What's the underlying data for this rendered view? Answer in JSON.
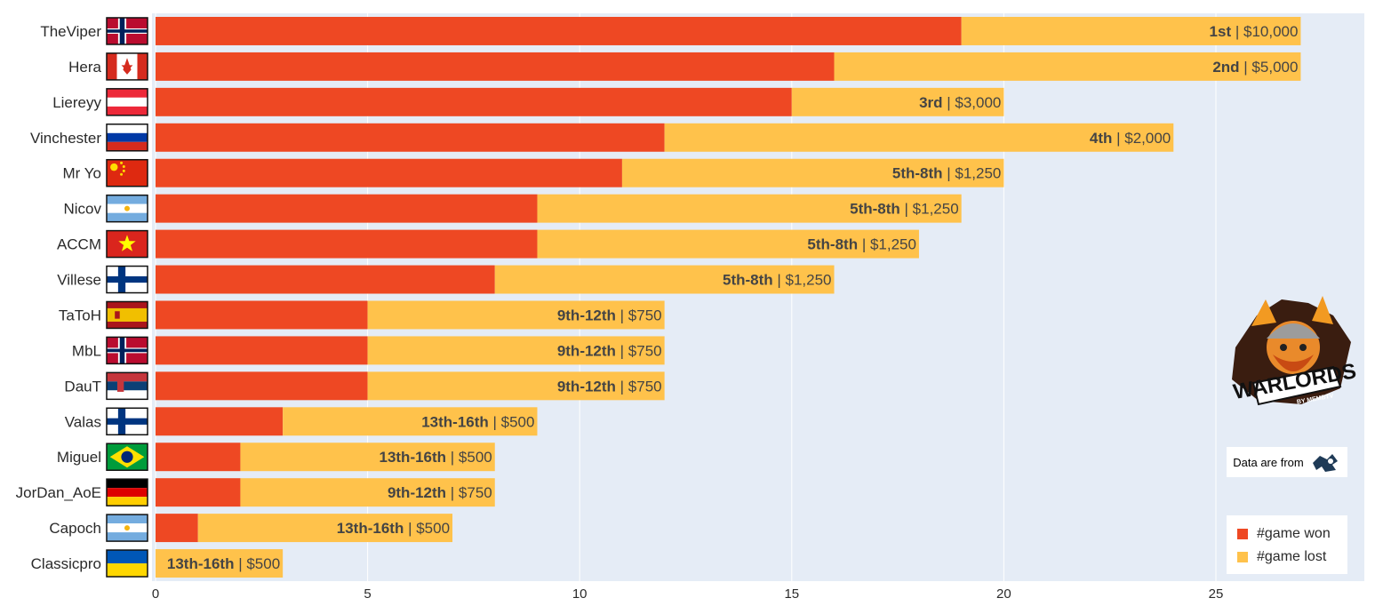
{
  "chart_data": {
    "type": "bar",
    "orientation": "horizontal",
    "stacked": true,
    "categories": [
      "TheViper",
      "Hera",
      "Liereyy",
      "Vinchester",
      "Mr Yo",
      "Nicov",
      "ACCM",
      "Villese",
      "TaToH",
      "MbL",
      "DauT",
      "Valas",
      "Miguel",
      "JorDan_AoE",
      "Capoch",
      "Classicpro"
    ],
    "series": [
      {
        "name": "#game won",
        "color": "#ee4823",
        "values": [
          19,
          16,
          15,
          12,
          11,
          9,
          9,
          8,
          5,
          5,
          5,
          3,
          2,
          2,
          1,
          0
        ]
      },
      {
        "name": "#game lost",
        "color": "#ffc24b",
        "values": [
          8,
          11,
          5,
          12,
          9,
          10,
          9,
          8,
          7,
          7,
          7,
          6,
          6,
          6,
          6,
          3
        ]
      }
    ],
    "bar_labels": [
      {
        "place": "1st",
        "prize": "| $10,000"
      },
      {
        "place": "2nd",
        "prize": "| $5,000"
      },
      {
        "place": "3rd",
        "prize": "| $3,000"
      },
      {
        "place": "4th",
        "prize": "| $2,000"
      },
      {
        "place": "5th-8th",
        "prize": "| $1,250"
      },
      {
        "place": "5th-8th",
        "prize": "| $1,250"
      },
      {
        "place": "5th-8th",
        "prize": "| $1,250"
      },
      {
        "place": "5th-8th",
        "prize": "| $1,250"
      },
      {
        "place": "9th-12th",
        "prize": "| $750"
      },
      {
        "place": "9th-12th",
        "prize": "| $750"
      },
      {
        "place": "9th-12th",
        "prize": "| $750"
      },
      {
        "place": "13th-16th",
        "prize": "| $500"
      },
      {
        "place": "13th-16th",
        "prize": "| $500"
      },
      {
        "place": "9th-12th",
        "prize": "| $750"
      },
      {
        "place": "13th-16th",
        "prize": "| $500"
      },
      {
        "place": "13th-16th",
        "prize": "| $500"
      }
    ],
    "flags": [
      "norway",
      "canada",
      "austria",
      "russia",
      "china",
      "argentina",
      "vietnam",
      "finland",
      "spain",
      "norway",
      "serbia",
      "finland",
      "brazil",
      "germany",
      "argentina",
      "ukraine"
    ],
    "xlim": [
      -1.1,
      28.5
    ],
    "x_ticks": [
      0,
      5,
      10,
      15,
      20,
      25
    ],
    "grid": true,
    "plot_background": "#e5ecf6",
    "legend_position": "bottom-right"
  },
  "legend": {
    "won": "#game won",
    "lost": "#game lost"
  },
  "source_note": "Data are from",
  "logo": {
    "name": "warlords-logo",
    "text": "WARLORDS",
    "subtext": "BY MEMBTV"
  }
}
